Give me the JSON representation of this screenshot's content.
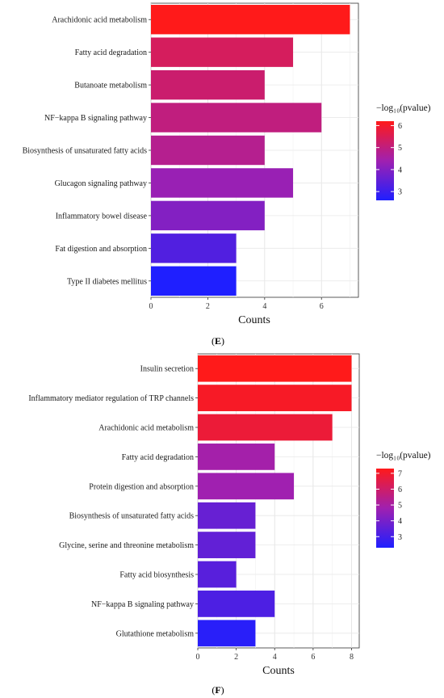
{
  "figure": {
    "panels": [
      "E",
      "F"
    ]
  },
  "chart_data": [
    {
      "type": "bar",
      "orientation": "horizontal",
      "panel_label": "E",
      "xlabel": "Counts",
      "ylabel": "",
      "xlim": [
        0,
        7.3
      ],
      "xticks": [
        "0",
        "2",
        "4",
        "6"
      ],
      "xtick_values": [
        0,
        2,
        4,
        6
      ],
      "grid": true,
      "legend_title": "−log₁₀(pvalue)",
      "legend_position": "right",
      "color_range": [
        2.6,
        6.2
      ],
      "color_low": "#1f1fff",
      "color_mid": "#a020b0",
      "color_high": "#ff1a1a",
      "legend_ticks": [
        "3",
        "4",
        "5",
        "6"
      ],
      "legend_tick_values": [
        3,
        4,
        5,
        6
      ],
      "categories": [
        "Arachidonic acid metabolism",
        "Fatty acid degradation",
        "Butanoate metabolism",
        "NF−kappa B signaling pathway",
        "Biosynthesis of unsaturated fatty acids",
        "Glucagon signaling pathway",
        "Inflammatory bowel disease",
        "Fat digestion and absorption",
        "Type II diabetes mellitus"
      ],
      "values": [
        7,
        5,
        4,
        6,
        4,
        5,
        4,
        3,
        3
      ],
      "color_values": [
        6.2,
        5.4,
        5.2,
        5.0,
        4.8,
        4.3,
        4.0,
        3.3,
        2.6
      ]
    },
    {
      "type": "bar",
      "orientation": "horizontal",
      "panel_label": "F",
      "xlabel": "Counts",
      "ylabel": "",
      "xlim": [
        0,
        8.4
      ],
      "xticks": [
        "0",
        "2",
        "4",
        "6",
        "8"
      ],
      "xtick_values": [
        0,
        2,
        4,
        6,
        8
      ],
      "grid": true,
      "legend_title": "−log₁₀(pvalue)",
      "legend_position": "right",
      "color_range": [
        2.3,
        7.3
      ],
      "color_low": "#1f1fff",
      "color_mid": "#a020b0",
      "color_high": "#ff1a1a",
      "legend_ticks": [
        "3",
        "4",
        "5",
        "6",
        "7"
      ],
      "legend_tick_values": [
        3,
        4,
        5,
        6,
        7
      ],
      "categories": [
        "Insulin secretion",
        "Inflammatory mediator regulation of TRP channels",
        "Arachidonic acid metabolism",
        "Fatty acid degradation",
        "Protein digestion and absorption",
        "Biosynthesis of unsaturated fatty acids",
        "Glycine, serine and threonine metabolism",
        "Fatty acid biosynthesis",
        "NF−kappa B signaling pathway",
        "Glutathione metabolism"
      ],
      "values": [
        8,
        8,
        7,
        4,
        5,
        3,
        3,
        2,
        4,
        3
      ],
      "color_values": [
        7.3,
        7.1,
        6.8,
        4.9,
        4.8,
        3.7,
        3.6,
        3.4,
        3.2,
        2.5
      ]
    }
  ]
}
